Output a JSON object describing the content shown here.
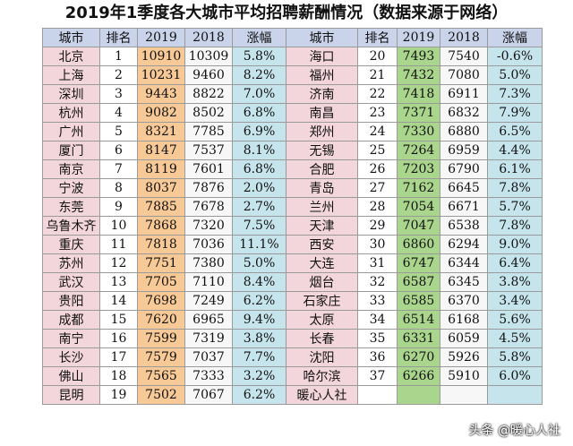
{
  "title": "2019年1季度各大城市平均招聘薪酬情况（数据来源于网络）",
  "headers": [
    "城市",
    "排名",
    "2019",
    "2018",
    "涨幅",
    "城市",
    "排名",
    "2019",
    "2018",
    "涨幅"
  ],
  "rows": [
    [
      "北京",
      "1",
      "10910",
      "10309",
      "5.8%",
      "海口",
      "20",
      "7493",
      "7540",
      "-0.6%"
    ],
    [
      "上海",
      "2",
      "10231",
      "9460",
      "8.2%",
      "福州",
      "21",
      "7432",
      "7080",
      "5.0%"
    ],
    [
      "深圳",
      "3",
      "9443",
      "8822",
      "7.0%",
      "济南",
      "22",
      "7418",
      "6911",
      "7.3%"
    ],
    [
      "杭州",
      "4",
      "9082",
      "8502",
      "6.8%",
      "南昌",
      "23",
      "7371",
      "6832",
      "7.9%"
    ],
    [
      "广州",
      "5",
      "8321",
      "7785",
      "6.9%",
      "郑州",
      "24",
      "7330",
      "6880",
      "6.5%"
    ],
    [
      "厦门",
      "6",
      "8147",
      "7537",
      "8.1%",
      "无锡",
      "25",
      "7264",
      "6959",
      "4.4%"
    ],
    [
      "南京",
      "7",
      "8119",
      "7601",
      "6.8%",
      "合肥",
      "26",
      "7203",
      "6790",
      "6.1%"
    ],
    [
      "宁波",
      "8",
      "8037",
      "7876",
      "2.0%",
      "青岛",
      "27",
      "7162",
      "6645",
      "7.8%"
    ],
    [
      "东莞",
      "9",
      "7885",
      "7678",
      "2.7%",
      "兰州",
      "28",
      "7054",
      "6671",
      "5.7%"
    ],
    [
      "乌鲁木齐",
      "10",
      "7868",
      "7320",
      "7.5%",
      "天津",
      "29",
      "7047",
      "6538",
      "7.8%"
    ],
    [
      "重庆",
      "11",
      "7818",
      "7036",
      "11.1%",
      "西安",
      "30",
      "6860",
      "6294",
      "9.0%"
    ],
    [
      "苏州",
      "12",
      "7751",
      "7380",
      "5.0%",
      "大连",
      "31",
      "6747",
      "6344",
      "6.4%"
    ],
    [
      "武汉",
      "13",
      "7705",
      "7110",
      "8.4%",
      "烟台",
      "32",
      "6587",
      "6345",
      "3.8%"
    ],
    [
      "贵阳",
      "14",
      "7698",
      "7249",
      "6.2%",
      "石家庄",
      "33",
      "6585",
      "6370",
      "3.4%"
    ],
    [
      "成都",
      "15",
      "7620",
      "6965",
      "9.4%",
      "太原",
      "34",
      "6514",
      "6168",
      "5.6%"
    ],
    [
      "南宁",
      "16",
      "7599",
      "7319",
      "3.8%",
      "长春",
      "35",
      "6331",
      "6059",
      "4.5%"
    ],
    [
      "长沙",
      "17",
      "7579",
      "7037",
      "7.7%",
      "沈阳",
      "36",
      "6270",
      "5926",
      "5.8%"
    ],
    [
      "佛山",
      "18",
      "7565",
      "7333",
      "3.2%",
      "哈尔滨",
      "37",
      "6266",
      "5910",
      "6.0%"
    ],
    [
      "昆明",
      "19",
      "7502",
      "7067",
      "6.2%",
      "暖心人社",
      "",
      "",
      "",
      ""
    ]
  ],
  "watermark": "头条 @暖心人社"
}
